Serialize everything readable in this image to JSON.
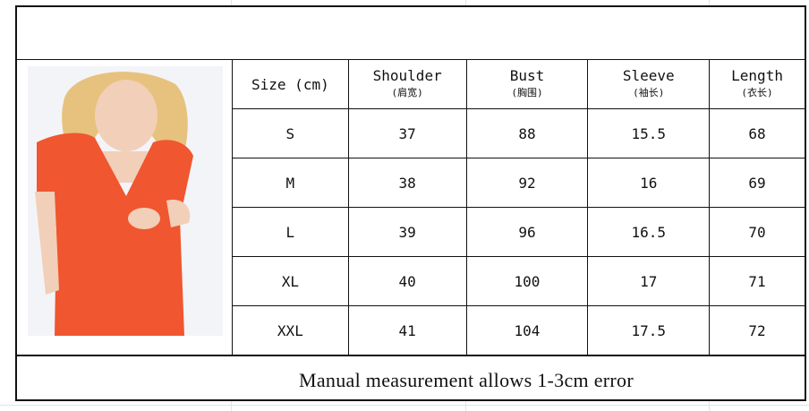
{
  "table": {
    "headers": [
      {
        "label": "Size (cm)",
        "sub": ""
      },
      {
        "label": "Shoulder",
        "sub": "(肩宽)"
      },
      {
        "label": "Bust",
        "sub": "(胸围)"
      },
      {
        "label": "Sleeve",
        "sub": "(袖长)"
      },
      {
        "label": "Length",
        "sub": "(衣长)"
      }
    ],
    "rows": [
      [
        "S",
        "37",
        "88",
        "15.5",
        "68"
      ],
      [
        "M",
        "38",
        "92",
        "16",
        "69"
      ],
      [
        "L",
        "39",
        "96",
        "16.5",
        "70"
      ],
      [
        "XL",
        "40",
        "100",
        "17",
        "71"
      ],
      [
        "XXL",
        "41",
        "104",
        "17.5",
        "72"
      ]
    ]
  },
  "footer": {
    "note": "Manual measurement allows 1-3cm error"
  },
  "colors": {
    "dress": "#f0562f",
    "border": "#111111"
  }
}
